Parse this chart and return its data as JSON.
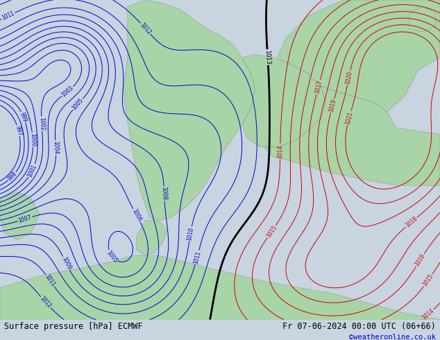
{
  "title_left": "Surface pressure [hPa] ECMWF",
  "title_right": "Fr 07-06-2024 00:00 UTC (06+66)",
  "credit": "©weatheronline.co.uk",
  "bg_color": "#c8d4e0",
  "land_color": "#a8d4a8",
  "blue_isobar_color": "#0000cc",
  "red_isobar_color": "#cc0000",
  "black_isobar_color": "#000000",
  "bottom_bar_color": "#ffffff",
  "bottom_text_color": "#000000",
  "credit_color": "#0000cc",
  "figsize": [
    6.34,
    4.9
  ],
  "dpi": 100,
  "bottom_bar_height": 0.06,
  "blue_levels": [
    997,
    998,
    999,
    1000,
    1001,
    1002,
    1003,
    1004,
    1005,
    1006,
    1007,
    1008,
    1009,
    1010,
    1011,
    1012
  ],
  "red_levels": [
    1014,
    1015,
    1016,
    1017,
    1018,
    1019,
    1020,
    1021
  ],
  "black_levels": [
    1013
  ]
}
